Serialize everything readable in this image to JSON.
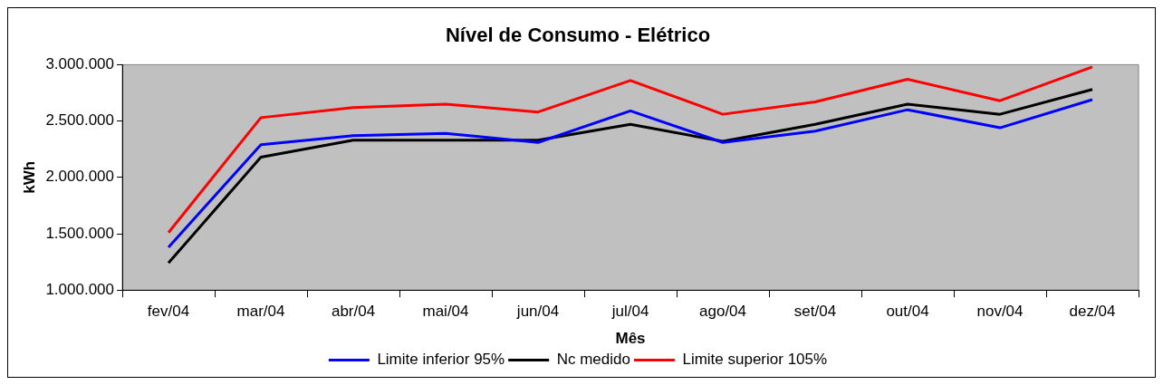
{
  "chart_data": {
    "type": "line",
    "title": "Nível de Consumo - Elétrico",
    "xlabel": "Mês",
    "ylabel": "kWh",
    "categories": [
      "fev/04",
      "mar/04",
      "abr/04",
      "mai/04",
      "jun/04",
      "jul/04",
      "ago/04",
      "set/04",
      "out/04",
      "nov/04",
      "dez/04"
    ],
    "series": [
      {
        "name": "Limite inferior 95%",
        "color": "#0000ff",
        "values": [
          1380000,
          2290000,
          2370000,
          2390000,
          2310000,
          2590000,
          2310000,
          2410000,
          2600000,
          2440000,
          2690000
        ]
      },
      {
        "name": "Nc medido",
        "color": "#000000",
        "values": [
          1240000,
          2180000,
          2330000,
          2330000,
          2330000,
          2470000,
          2320000,
          2470000,
          2650000,
          2560000,
          2780000
        ]
      },
      {
        "name": "Limite superior 105%",
        "color": "#ff0000",
        "values": [
          1510000,
          2530000,
          2620000,
          2650000,
          2580000,
          2860000,
          2560000,
          2670000,
          2870000,
          2680000,
          2980000
        ]
      }
    ],
    "ylim": [
      1000000,
      3000000
    ],
    "yticks": [
      {
        "value": 1000000,
        "label": "1.000.000"
      },
      {
        "value": 1500000,
        "label": "1.500.000"
      },
      {
        "value": 2000000,
        "label": "2.000.000"
      },
      {
        "value": 2500000,
        "label": "2.500.000"
      },
      {
        "value": 3000000,
        "label": "3.000.000"
      }
    ],
    "grid": false,
    "legend": "bottom",
    "marker": "none",
    "line_style": "solid"
  }
}
